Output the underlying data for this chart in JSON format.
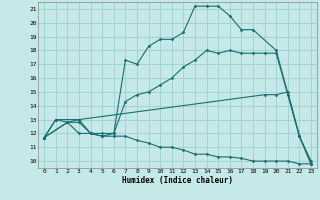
{
  "xlabel": "Humidex (Indice chaleur)",
  "bg_color": "#c5e8e8",
  "grid_color": "#9fcece",
  "line_color": "#1a6e6e",
  "xlim": [
    -0.5,
    23.5
  ],
  "ylim": [
    9.5,
    21.5
  ],
  "xticks": [
    0,
    1,
    2,
    3,
    4,
    5,
    6,
    7,
    8,
    9,
    10,
    11,
    12,
    13,
    14,
    15,
    16,
    17,
    18,
    19,
    20,
    21,
    22,
    23
  ],
  "yticks": [
    10,
    11,
    12,
    13,
    14,
    15,
    16,
    17,
    18,
    19,
    20,
    21
  ],
  "lines": [
    {
      "x": [
        0,
        1,
        3,
        4,
        5,
        6,
        7,
        8,
        9,
        10,
        11,
        12,
        13,
        14,
        15,
        16,
        17,
        18,
        20,
        22,
        23
      ],
      "y": [
        11.7,
        13.0,
        13.0,
        12.0,
        12.0,
        12.0,
        17.3,
        17.0,
        18.3,
        18.8,
        18.8,
        19.3,
        21.2,
        21.2,
        21.2,
        20.5,
        19.5,
        19.5,
        18.0,
        11.8,
        9.8
      ]
    },
    {
      "x": [
        0,
        2,
        3,
        4,
        5,
        6,
        7,
        8,
        9,
        10,
        11,
        12,
        13,
        14,
        15,
        16,
        17,
        18,
        19,
        20,
        21,
        22,
        23
      ],
      "y": [
        11.7,
        12.8,
        12.8,
        12.0,
        11.8,
        12.0,
        14.3,
        14.8,
        15.0,
        15.5,
        16.0,
        16.8,
        17.3,
        18.0,
        17.8,
        18.0,
        17.8,
        17.8,
        17.8,
        17.8,
        14.8,
        11.8,
        9.8
      ]
    },
    {
      "x": [
        0,
        2,
        3,
        19,
        20,
        21,
        22,
        23
      ],
      "y": [
        11.7,
        12.8,
        13.0,
        14.8,
        14.8,
        15.0,
        11.8,
        10.0
      ]
    },
    {
      "x": [
        0,
        1,
        2,
        3,
        4,
        5,
        6,
        7,
        8,
        9,
        10,
        11,
        12,
        13,
        14,
        15,
        16,
        17,
        18,
        19,
        20,
        21,
        22,
        23
      ],
      "y": [
        11.7,
        13.0,
        12.8,
        12.0,
        12.0,
        11.8,
        11.8,
        11.8,
        11.5,
        11.3,
        11.0,
        11.0,
        10.8,
        10.5,
        10.5,
        10.3,
        10.3,
        10.2,
        10.0,
        10.0,
        10.0,
        10.0,
        9.8,
        9.8
      ]
    }
  ]
}
